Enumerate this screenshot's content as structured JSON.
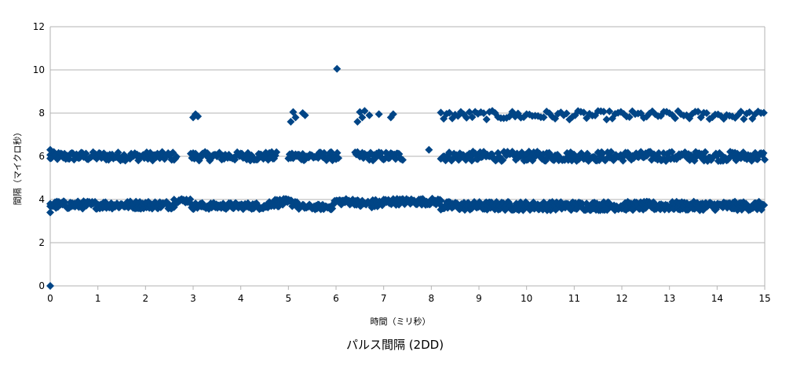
{
  "chart_data": {
    "type": "scatter",
    "title": "パルス間隔 (2DD)",
    "xlabel": "時間（ミリ秒）",
    "ylabel": "間隔（マイクロ秒）",
    "xlim": [
      0,
      15
    ],
    "ylim": [
      0,
      12
    ],
    "x_ticks": [
      "0",
      "1",
      "2",
      "3",
      "4",
      "5",
      "6",
      "7",
      "8",
      "9",
      "10",
      "11",
      "12",
      "13",
      "14",
      "15"
    ],
    "y_ticks": [
      "0",
      "2",
      "4",
      "6",
      "8",
      "10",
      "12"
    ],
    "grid": "horizontal",
    "legend": "none",
    "marker": "diamond",
    "color": "#004586",
    "series": [
      {
        "points": [
          [
            0.0,
            0.0
          ],
          [
            6.02,
            10.05
          ],
          [
            0.0,
            3.4
          ],
          [
            0.0,
            3.8
          ],
          [
            0.0,
            5.9
          ],
          [
            0.0,
            6.3
          ],
          [
            3.0,
            7.8
          ],
          [
            3.05,
            7.95
          ],
          [
            3.1,
            7.85
          ],
          [
            5.05,
            7.6
          ],
          [
            5.1,
            8.05
          ],
          [
            5.15,
            7.8
          ],
          [
            5.3,
            8.0
          ],
          [
            5.35,
            7.9
          ],
          [
            6.45,
            7.6
          ],
          [
            6.5,
            8.05
          ],
          [
            6.55,
            7.8
          ],
          [
            6.6,
            8.1
          ],
          [
            6.7,
            7.9
          ],
          [
            6.9,
            7.95
          ],
          [
            7.15,
            7.8
          ],
          [
            7.2,
            7.95
          ],
          [
            7.95,
            6.3
          ]
        ],
        "bands": [
          {
            "x_range": [
              0.0,
              2.65
            ],
            "y_center": 6.0,
            "spread": 0.2,
            "step": 0.025
          },
          {
            "x_range": [
              2.95,
              4.75
            ],
            "y_center": 6.0,
            "spread": 0.2,
            "step": 0.025
          },
          {
            "x_range": [
              5.0,
              6.05
            ],
            "y_center": 6.0,
            "spread": 0.2,
            "step": 0.025
          },
          {
            "x_range": [
              6.4,
              7.4
            ],
            "y_center": 6.0,
            "spread": 0.2,
            "step": 0.025
          },
          {
            "x_range": [
              8.2,
              15.0
            ],
            "y_center": 6.0,
            "spread": 0.22,
            "step": 0.025
          },
          {
            "x_range": [
              8.2,
              15.0
            ],
            "y_center": 7.9,
            "spread": 0.2,
            "step": 0.06
          },
          {
            "x_range": [
              0.0,
              2.6
            ],
            "y_center": 3.75,
            "spread": 0.18,
            "step": 0.02
          },
          {
            "x_range": [
              2.6,
              2.95
            ],
            "y_center": 3.95,
            "spread": 0.1,
            "step": 0.02
          },
          {
            "x_range": [
              2.95,
              4.6
            ],
            "y_center": 3.7,
            "spread": 0.15,
            "step": 0.02
          },
          {
            "x_range": [
              4.6,
              5.2
            ],
            "y_center": 3.85,
            "spread": 0.18,
            "step": 0.02
          },
          {
            "x_range": [
              5.2,
              5.95
            ],
            "y_center": 3.65,
            "spread": 0.12,
            "step": 0.02
          },
          {
            "x_range": [
              5.95,
              6.45
            ],
            "y_center": 3.9,
            "spread": 0.15,
            "step": 0.02
          },
          {
            "x_range": [
              6.45,
              7.0
            ],
            "y_center": 3.8,
            "spread": 0.2,
            "step": 0.02
          },
          {
            "x_range": [
              7.0,
              8.2
            ],
            "y_center": 3.9,
            "spread": 0.15,
            "step": 0.02
          },
          {
            "x_range": [
              8.2,
              15.0
            ],
            "y_center": 3.7,
            "spread": 0.2,
            "step": 0.018
          }
        ]
      }
    ]
  }
}
